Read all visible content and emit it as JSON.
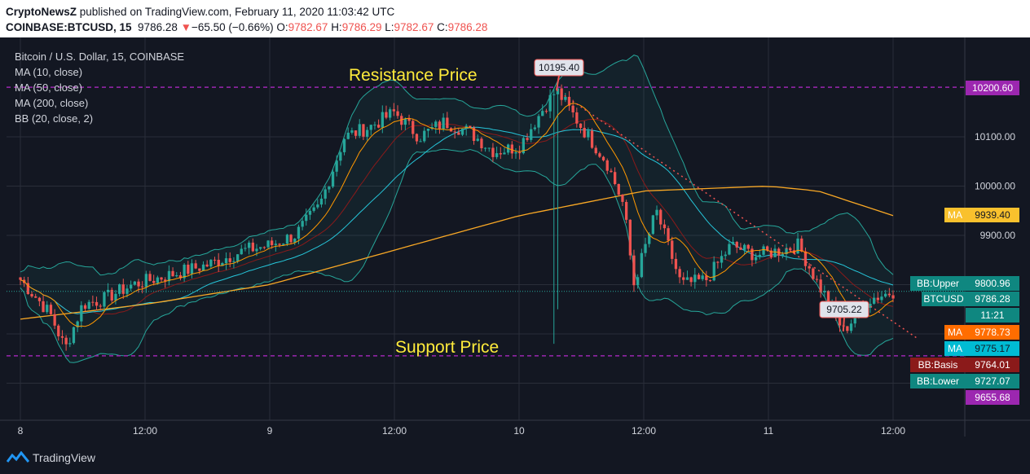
{
  "header": {
    "publisher": "CryptoNewsZ",
    "published_text": " published on TradingView.com, February 11, 2020 11:03:42 UTC",
    "symbol": "COINBASE:BTCUSD, 15",
    "last": "9786.28",
    "arrow": "▼",
    "change": "−65.50 (−0.66%)",
    "o_label": "O:",
    "o": "9782.67",
    "h_label": "H:",
    "h": "9786.29",
    "l_label": "L:",
    "l": "9782.67",
    "c_label": "C:",
    "c": "9786.28"
  },
  "legend": {
    "title": "Bitcoin / U.S. Dollar, 15, COINBASE",
    "items": [
      "MA (10, close)",
      "MA (50, close)",
      "MA (200, close)",
      "BB (20, close, 2)"
    ]
  },
  "footer": {
    "brand": "TradingView"
  },
  "chart_data": {
    "type": "candlestick",
    "x_tick_labels": [
      "8",
      "12:00",
      "9",
      "12:00",
      "10",
      "12:00",
      "11",
      "12:00"
    ],
    "y_tick_labels": [
      "10100.00",
      "10000.00",
      "9900.00",
      "9800.00"
    ],
    "ylim": [
      9600,
      10300
    ],
    "grid": true,
    "annotations": {
      "resistance_label": "Resistance Price",
      "resistance_value": 10200.6,
      "support_label": "Support Price",
      "support_value": 9655.68,
      "high_callout": "10195.40",
      "low_callout": "9705.22"
    },
    "price_tags": [
      {
        "label": "",
        "value": "10200.60",
        "color": "#9c27b0"
      },
      {
        "label": "MA",
        "value": "9939.40",
        "color": "#f9c12d"
      },
      {
        "label": "BB:Upper",
        "value": "9800.96",
        "color": "#0f8780"
      },
      {
        "label": "BTCUSD",
        "value": "9786.28",
        "color": "#0f8780"
      },
      {
        "label": "",
        "value": "11:21",
        "color": "#0f8780"
      },
      {
        "label": "MA",
        "value": "9778.73",
        "color": "#ff6d00"
      },
      {
        "label": "MA",
        "value": "9775.17",
        "color": "#00bcd4"
      },
      {
        "label": "BB:Basis",
        "value": "9764.01",
        "color": "#8b1a1a"
      },
      {
        "label": "BB:Lower",
        "value": "9727.07",
        "color": "#0f8780"
      },
      {
        "label": "",
        "value": "9655.68",
        "color": "#9c27b0"
      }
    ],
    "colors": {
      "up": "#26a69a",
      "down": "#ef5350",
      "ma10": "#ff9800",
      "ma50": "#26c6da",
      "ma200": "#f9a825",
      "bb": "#26a69a",
      "level": "#9c27b0",
      "trend": "#ef5350"
    },
    "price_path": [
      {
        "t": 0.0,
        "p": 9810
      },
      {
        "t": 0.07,
        "p": 9770
      },
      {
        "t": 0.12,
        "p": 9740
      },
      {
        "t": 0.18,
        "p": 9670
      },
      {
        "t": 0.25,
        "p": 9760
      },
      {
        "t": 0.33,
        "p": 9770
      },
      {
        "t": 0.45,
        "p": 9800
      },
      {
        "t": 0.6,
        "p": 9820
      },
      {
        "t": 0.75,
        "p": 9840
      },
      {
        "t": 0.9,
        "p": 9870
      },
      {
        "t": 1.0,
        "p": 9880
      },
      {
        "t": 1.1,
        "p": 9900
      },
      {
        "t": 1.2,
        "p": 9960
      },
      {
        "t": 1.3,
        "p": 10100
      },
      {
        "t": 1.4,
        "p": 10120
      },
      {
        "t": 1.5,
        "p": 10150
      },
      {
        "t": 1.6,
        "p": 10100
      },
      {
        "t": 1.7,
        "p": 10130
      },
      {
        "t": 1.8,
        "p": 10110
      },
      {
        "t": 1.9,
        "p": 10070
      },
      {
        "t": 2.0,
        "p": 10080
      },
      {
        "t": 2.1,
        "p": 10160
      },
      {
        "t": 2.15,
        "p": 10195
      },
      {
        "t": 2.25,
        "p": 10120
      },
      {
        "t": 2.35,
        "p": 10050
      },
      {
        "t": 2.42,
        "p": 9960
      },
      {
        "t": 2.46,
        "p": 9800
      },
      {
        "t": 2.55,
        "p": 9950
      },
      {
        "t": 2.65,
        "p": 9800
      },
      {
        "t": 2.75,
        "p": 9810
      },
      {
        "t": 2.85,
        "p": 9880
      },
      {
        "t": 2.95,
        "p": 9860
      },
      {
        "t": 3.05,
        "p": 9870
      },
      {
        "t": 3.12,
        "p": 9880
      },
      {
        "t": 3.2,
        "p": 9800
      },
      {
        "t": 3.25,
        "p": 9760
      },
      {
        "t": 3.3,
        "p": 9705
      },
      {
        "t": 3.4,
        "p": 9770
      },
      {
        "t": 3.5,
        "p": 9786
      }
    ],
    "ma200_path": [
      {
        "t": 0.0,
        "p": 9730
      },
      {
        "t": 0.5,
        "p": 9760
      },
      {
        "t": 1.0,
        "p": 9800
      },
      {
        "t": 1.5,
        "p": 9870
      },
      {
        "t": 2.0,
        "p": 9940
      },
      {
        "t": 2.5,
        "p": 9990
      },
      {
        "t": 3.0,
        "p": 10000
      },
      {
        "t": 3.2,
        "p": 9990
      },
      {
        "t": 3.5,
        "p": 9940
      }
    ]
  }
}
